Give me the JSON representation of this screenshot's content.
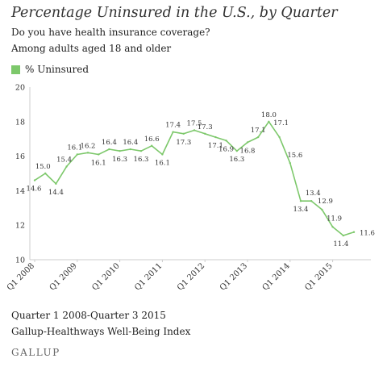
{
  "title": "Percentage Uninsured in the U.S., by Quarter",
  "subtitle_lines": [
    "Do you have health insurance coverage?",
    "Among adults aged 18 and older"
  ],
  "footer_lines": [
    "Quarter 1 2008-Quarter 3 2015",
    "Gallup-Healthways Well-Being Index"
  ],
  "brand": "GALLUP",
  "colors": {
    "line": "#7dc86b",
    "axis": "#cccccc",
    "grid": "#e6e6e6",
    "text": "#333333"
  },
  "chart_data": {
    "type": "line",
    "title": "Percentage Uninsured in the U.S., by Quarter",
    "xlabel": "",
    "ylabel": "",
    "ylim": [
      10,
      20
    ],
    "yticks": [
      10,
      12,
      14,
      16,
      18,
      20
    ],
    "x": [
      "Q1 2008",
      "Q2 2008",
      "Q3 2008",
      "Q4 2008",
      "Q1 2009",
      "Q2 2009",
      "Q3 2009",
      "Q4 2009",
      "Q1 2010",
      "Q2 2010",
      "Q3 2010",
      "Q4 2010",
      "Q1 2011",
      "Q2 2011",
      "Q3 2011",
      "Q4 2011",
      "Q1 2012",
      "Q2 2012",
      "Q3 2012",
      "Q4 2012",
      "Q1 2013",
      "Q2 2013",
      "Q3 2013",
      "Q4 2013",
      "Q1 2014",
      "Q2 2014",
      "Q3 2014",
      "Q4 2014",
      "Q1 2015",
      "Q2 2015",
      "Q3 2015"
    ],
    "xtick_labels": [
      "Q1 2008",
      "Q1 2009",
      "Q1 2010",
      "Q1 2011",
      "Q1 2012",
      "Q1 2013",
      "Q1 2014",
      "Q1 2015"
    ],
    "series": [
      {
        "name": "% Uninsured",
        "values": [
          14.6,
          15.0,
          14.4,
          15.4,
          16.1,
          16.2,
          16.1,
          16.4,
          16.3,
          16.4,
          16.3,
          16.6,
          16.1,
          17.4,
          17.3,
          17.5,
          17.3,
          17.1,
          16.9,
          16.3,
          16.8,
          17.1,
          18.0,
          17.1,
          15.6,
          13.4,
          13.4,
          12.9,
          11.9,
          11.4,
          11.6
        ]
      }
    ],
    "grid": false,
    "legend": "top-left"
  }
}
